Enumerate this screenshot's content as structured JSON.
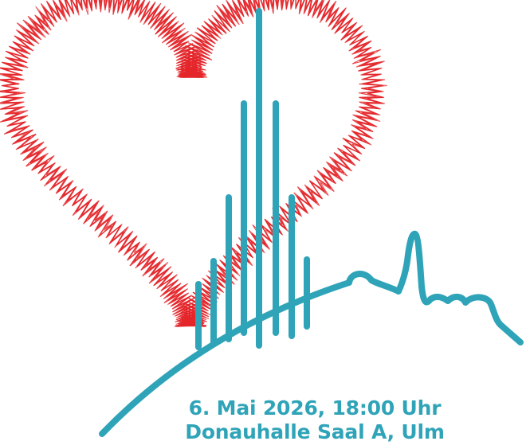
{
  "event": {
    "date_time": "6. Mai 2026, 18:00 Uhr",
    "venue": "Donauhalle Saal A, Ulm"
  },
  "colors": {
    "teal": "#2fa4b8",
    "heart_red": "#e3262b",
    "background": "#ffffff"
  },
  "logo": {
    "heart_style": "scribbled red heart",
    "skyline": "Ulm Minster spire as vertical bars",
    "line": "ECG heartbeat line over hill"
  }
}
